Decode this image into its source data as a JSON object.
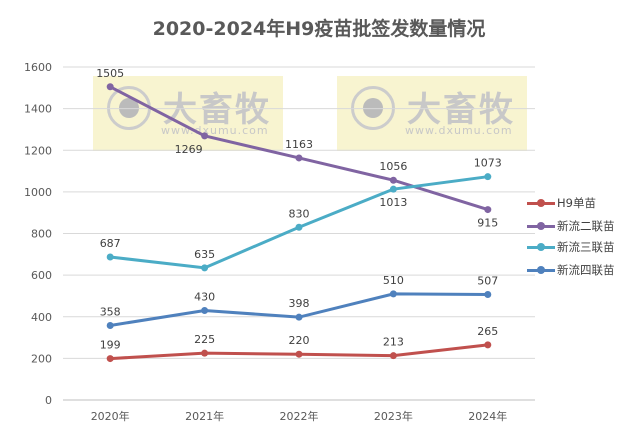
{
  "chart_data": {
    "type": "line",
    "title": "2020-2024年H9疫苗批签发数量情况",
    "categories": [
      "2020年",
      "2021年",
      "2022年",
      "2023年",
      "2024年"
    ],
    "ylim": [
      0,
      1600
    ],
    "yticks": [
      0,
      200,
      400,
      600,
      800,
      1000,
      1200,
      1400,
      1600
    ],
    "grid": true,
    "legend": "right",
    "series": [
      {
        "name": "H9单苗",
        "color": "#c0504d",
        "values": [
          199,
          225,
          220,
          213,
          265
        ]
      },
      {
        "name": "新流二联苗",
        "color": "#8064a2",
        "values": [
          1505,
          1269,
          1163,
          1056,
          915
        ]
      },
      {
        "name": "新流三联苗",
        "color": "#4bacc6",
        "values": [
          687,
          635,
          830,
          1013,
          1073
        ]
      },
      {
        "name": "新流四联苗",
        "color": "#4f81bd",
        "values": [
          358,
          430,
          398,
          510,
          507
        ]
      }
    ]
  },
  "watermark": {
    "text": "大畜牧",
    "url": "www.dxumu.com"
  }
}
